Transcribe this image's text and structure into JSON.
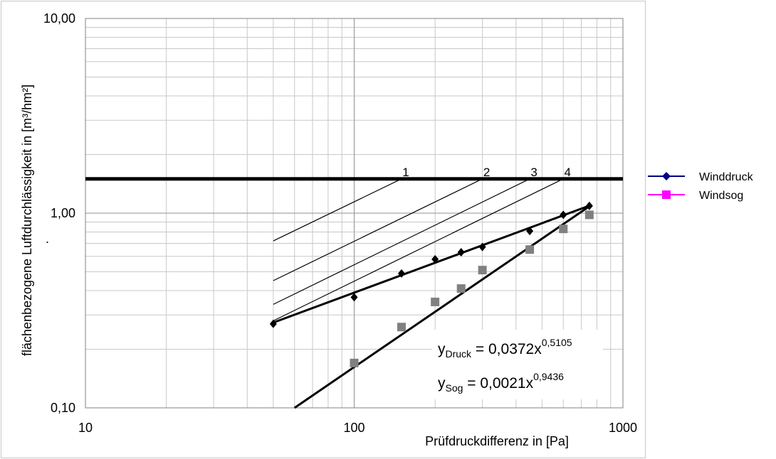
{
  "chart_data": {
    "type": "scatter",
    "x_scale": "log",
    "y_scale": "log",
    "xlim": [
      10,
      1000
    ],
    "ylim": [
      0.1,
      10
    ],
    "x_ticks": [
      "10",
      "100",
      "1000"
    ],
    "y_ticks": [
      "0,10",
      "1,00",
      "10,00"
    ],
    "xlabel": "Prüfdruckdifferenz in [Pa]",
    "ylabel": "flächenbezogene Luftdurchlässigkeit in [m³/hm²]",
    "grid": true,
    "legend_position": "right",
    "series": [
      {
        "name": "Winddruck",
        "color": "#000080",
        "marker": "diamond",
        "x": [
          50,
          100,
          150,
          200,
          250,
          300,
          450,
          600,
          750
        ],
        "y": [
          0.27,
          0.37,
          0.49,
          0.58,
          0.63,
          0.67,
          0.81,
          0.98,
          1.09
        ]
      },
      {
        "name": "Windsog",
        "color": "#ff00ff",
        "plot_color": "#808080",
        "marker": "square",
        "x": [
          100,
          150,
          200,
          250,
          300,
          450,
          600,
          750
        ],
        "y": [
          0.17,
          0.26,
          0.35,
          0.41,
          0.51,
          0.65,
          0.83,
          0.98
        ]
      }
    ],
    "trendlines": [
      {
        "series": "Winddruck",
        "coef": 0.0372,
        "exp": 0.5105,
        "x_range": [
          50,
          750
        ],
        "label_y": "y",
        "label_sub": "Druck",
        "label_rhs": " = 0,0372x",
        "label_exp": "0,5105"
      },
      {
        "series": "Windsog",
        "coef": 0.0021,
        "exp": 0.9436,
        "x_range": [
          60,
          750
        ],
        "label_y": "y",
        "label_sub": "Sog",
        "label_rhs": " = 0,0021x",
        "label_exp": "0,9436"
      }
    ],
    "reference_line": {
      "y": 1.5
    },
    "class_lines": [
      {
        "label": "1",
        "x0": 50,
        "y0": 0.72,
        "x1": 150,
        "y1": 1.5
      },
      {
        "label": "2",
        "x0": 50,
        "y0": 0.45,
        "x1": 300,
        "y1": 1.5
      },
      {
        "label": "3",
        "x0": 50,
        "y0": 0.34,
        "x1": 450,
        "y1": 1.5
      },
      {
        "label": "4",
        "x0": 50,
        "y0": 0.28,
        "x1": 600,
        "y1": 1.5
      }
    ],
    "stray_mark": "."
  }
}
